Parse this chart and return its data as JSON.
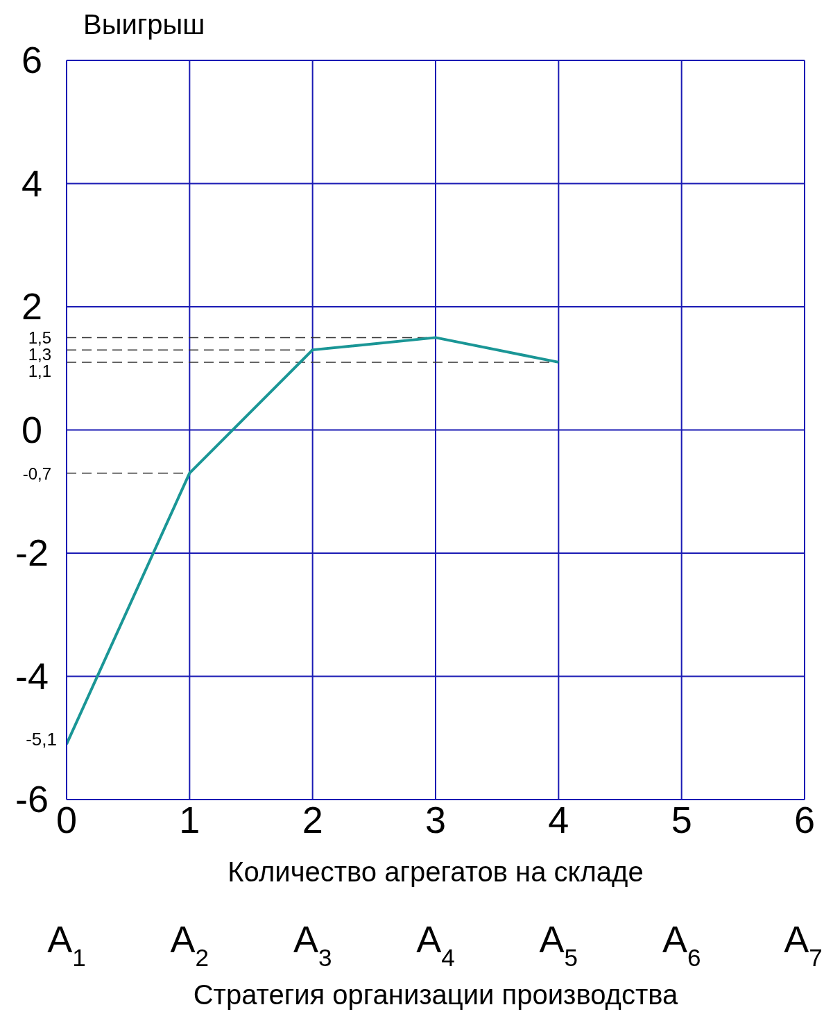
{
  "chart_data": {
    "type": "line",
    "xlabel": "Количество агрегатов на складе",
    "x2label": "Стратегия организации производства",
    "ylabel": "Выигрыш",
    "x": [
      0,
      1,
      2,
      3,
      4
    ],
    "series": [
      {
        "color": "#1a9696",
        "values": [
          -5.1,
          -0.7,
          1.3,
          1.5,
          1.1
        ]
      }
    ],
    "xlim": [
      0,
      6
    ],
    "xticks": [
      0,
      1,
      2,
      3,
      4,
      5,
      6
    ],
    "ylim": [
      -6,
      6
    ],
    "yticks": [
      -6,
      -4,
      -2,
      0,
      2,
      4,
      6
    ],
    "ref_lines": [
      {
        "axis": "y",
        "value": 1.5,
        "label": "1,5",
        "line_style": "dashed",
        "color": "#333333"
      },
      {
        "axis": "y",
        "value": 1.3,
        "label": "1,3",
        "line_style": "dashed",
        "color": "#333333"
      },
      {
        "axis": "y",
        "value": 1.1,
        "label": "1,1",
        "line_style": "dashed",
        "color": "#333333"
      },
      {
        "axis": "y",
        "value": -0.7,
        "label": "-0,7",
        "line_style": "dashed",
        "color": "#333333"
      }
    ],
    "annotations": [
      {
        "text": "-5,1",
        "x": 0,
        "y": -5.1
      },
      "A$_{1}$",
      "A$_{2}$",
      "A$_{3}$",
      "A$_{4}$",
      "A$_{5}$",
      "A$_{6}$",
      "A$_{7}$"
    ],
    "grid": true,
    "marker": "none",
    "line_style": "solid"
  }
}
